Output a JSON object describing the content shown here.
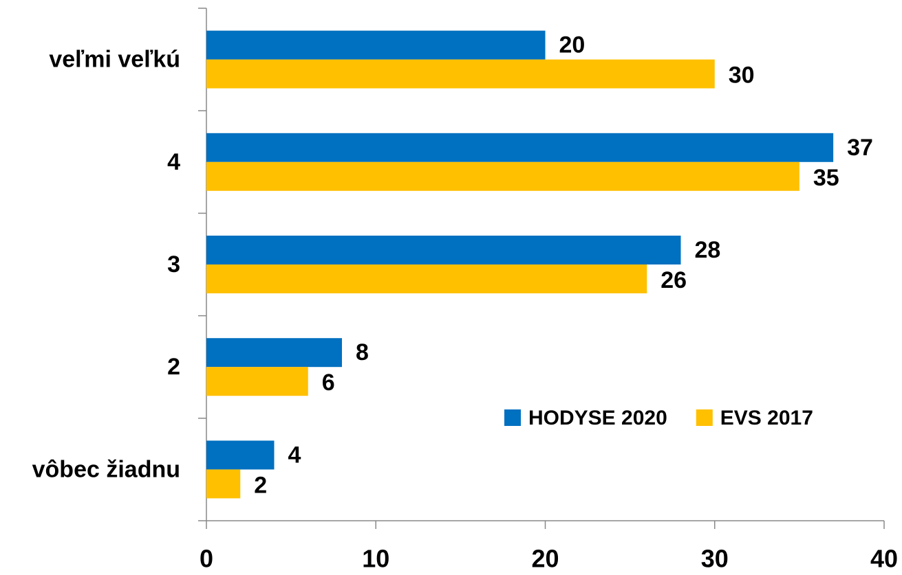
{
  "chart_data": {
    "type": "bar",
    "orientation": "horizontal",
    "categories": [
      "veľmi veľkú",
      "4",
      "3",
      "2",
      "vôbec žiadnu"
    ],
    "series": [
      {
        "name": "HODYSE 2020",
        "color": "#0070C0",
        "values": [
          20,
          37,
          28,
          8,
          4
        ]
      },
      {
        "name": "EVS 2017",
        "color": "#FFC000",
        "values": [
          30,
          35,
          26,
          6,
          2
        ]
      }
    ],
    "xlim": [
      0,
      40
    ],
    "xticks": [
      0,
      10,
      20,
      30,
      40
    ],
    "legend": "lower right"
  }
}
